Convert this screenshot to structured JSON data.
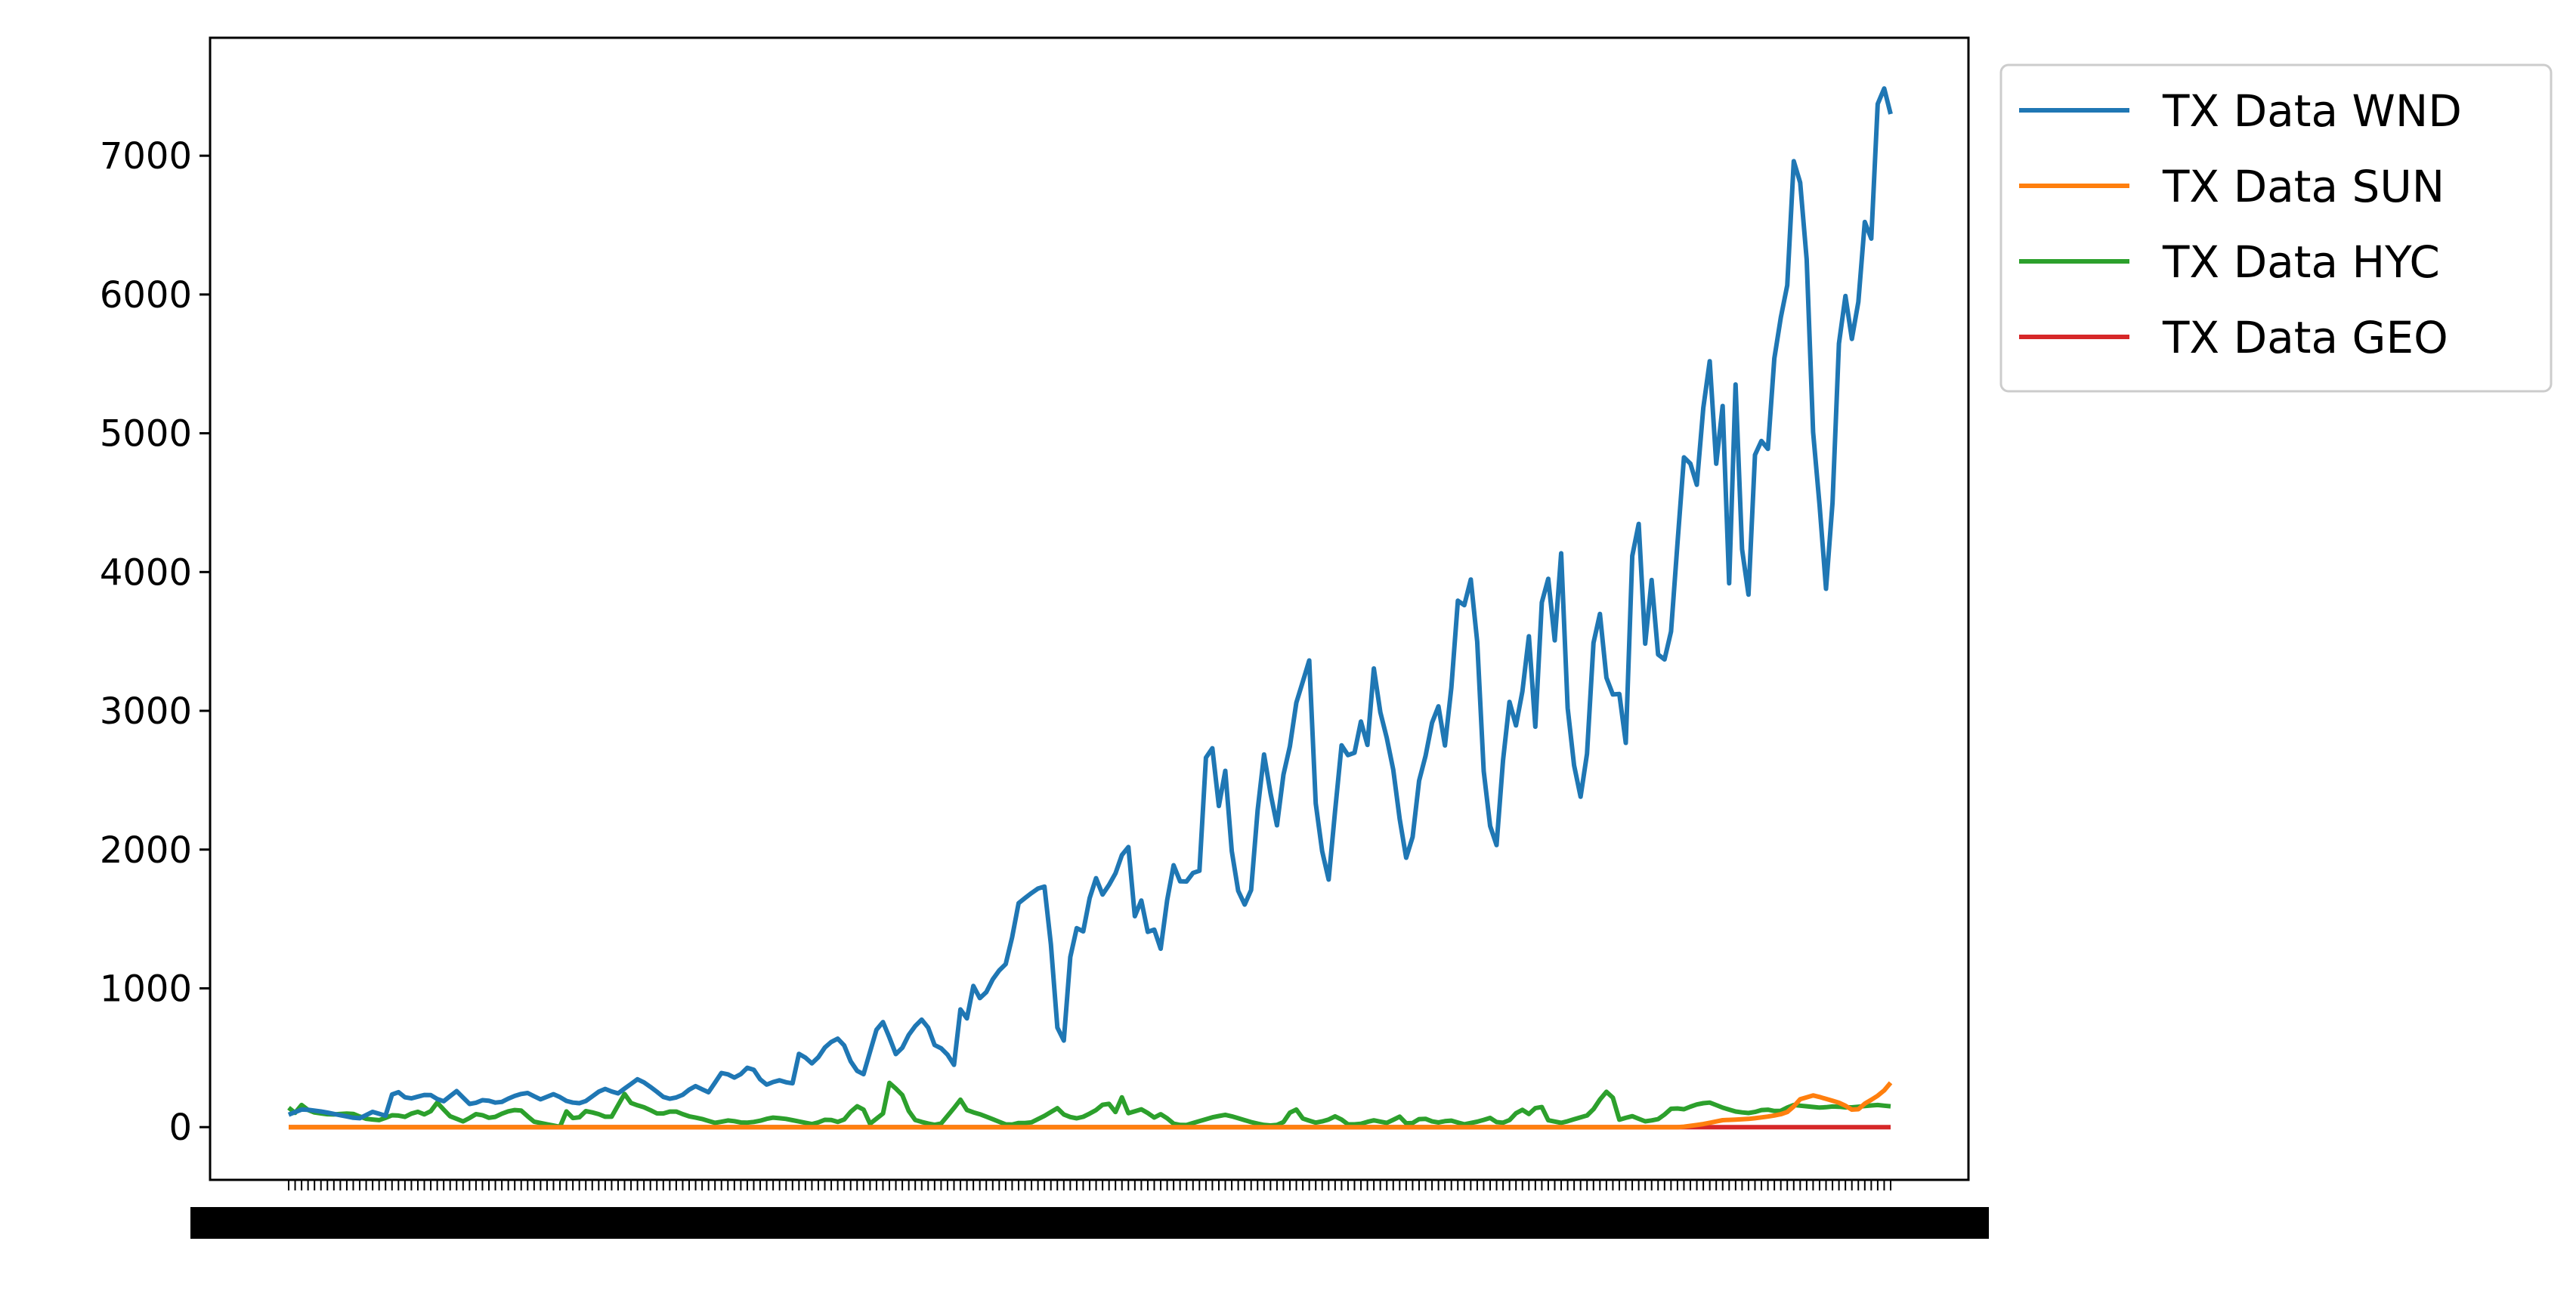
{
  "chart_data": {
    "type": "line",
    "title": "",
    "xlabel": "",
    "ylabel": "",
    "ylim": [
      -380,
      7850
    ],
    "yticks": [
      0,
      1000,
      2000,
      3000,
      4000,
      5000,
      6000,
      7000
    ],
    "ytick_labels": [
      "0",
      "1000",
      "2000",
      "3000",
      "4000",
      "5000",
      "6000",
      "7000"
    ],
    "x_count": 249,
    "x_tick_labels_note": "x tick labels are overplotted and illegible in the original",
    "grid": false,
    "legend_position": "outside top-right",
    "series": [
      {
        "name": "TX Data WND",
        "color": "#1f77b4",
        "anchors": [
          [
            0,
            90
          ],
          [
            2,
            130
          ],
          [
            5,
            110
          ],
          [
            10,
            60
          ],
          [
            12,
            110
          ],
          [
            14,
            80
          ],
          [
            15,
            280
          ],
          [
            17,
            200
          ],
          [
            20,
            240
          ],
          [
            22,
            180
          ],
          [
            24,
            260
          ],
          [
            26,
            160
          ],
          [
            28,
            200
          ],
          [
            30,
            170
          ],
          [
            32,
            220
          ],
          [
            34,
            250
          ],
          [
            36,
            200
          ],
          [
            38,
            240
          ],
          [
            40,
            180
          ],
          [
            42,
            170
          ],
          [
            45,
            280
          ],
          [
            47,
            240
          ],
          [
            50,
            350
          ],
          [
            52,
            280
          ],
          [
            54,
            200
          ],
          [
            56,
            220
          ],
          [
            58,
            300
          ],
          [
            60,
            250
          ],
          [
            62,
            400
          ],
          [
            64,
            350
          ],
          [
            66,
            450
          ],
          [
            68,
            300
          ],
          [
            70,
            340
          ],
          [
            72,
            310
          ],
          [
            73,
            540
          ],
          [
            75,
            450
          ],
          [
            77,
            600
          ],
          [
            79,
            650
          ],
          [
            80,
            500
          ],
          [
            82,
            350
          ],
          [
            84,
            700
          ],
          [
            85,
            760
          ],
          [
            87,
            500
          ],
          [
            89,
            700
          ],
          [
            91,
            800
          ],
          [
            92,
            600
          ],
          [
            94,
            550
          ],
          [
            95,
            400
          ],
          [
            96,
            850
          ],
          [
            97,
            780
          ],
          [
            98,
            1050
          ],
          [
            99,
            900
          ],
          [
            101,
            1100
          ],
          [
            103,
            1200
          ],
          [
            104,
            1600
          ],
          [
            106,
            1680
          ],
          [
            108,
            1750
          ],
          [
            109,
            1300
          ],
          [
            110,
            640
          ],
          [
            111,
            620
          ],
          [
            112,
            1450
          ],
          [
            114,
            1400
          ],
          [
            115,
            1900
          ],
          [
            116,
            1650
          ],
          [
            118,
            1800
          ],
          [
            119,
            1950
          ],
          [
            120,
            2040
          ],
          [
            121,
            1500
          ],
          [
            122,
            1650
          ],
          [
            123,
            1350
          ],
          [
            124,
            1450
          ],
          [
            125,
            1200
          ],
          [
            126,
            1950
          ],
          [
            128,
            1700
          ],
          [
            129,
            1900
          ],
          [
            130,
            1650
          ],
          [
            131,
            2650
          ],
          [
            132,
            2750
          ],
          [
            133,
            2300
          ],
          [
            134,
            2600
          ],
          [
            135,
            1850
          ],
          [
            136,
            1650
          ],
          [
            137,
            1580
          ],
          [
            138,
            1800
          ],
          [
            139,
            2750
          ],
          [
            140,
            2600
          ],
          [
            141,
            2050
          ],
          [
            142,
            2500
          ],
          [
            143,
            2700
          ],
          [
            144,
            3050
          ],
          [
            146,
            3380
          ],
          [
            147,
            2100
          ],
          [
            148,
            1950
          ],
          [
            149,
            1700
          ],
          [
            150,
            2680
          ],
          [
            151,
            2820
          ],
          [
            152,
            2500
          ],
          [
            153,
            3050
          ],
          [
            154,
            2600
          ],
          [
            155,
            3350
          ],
          [
            156,
            3000
          ],
          [
            157,
            2800
          ],
          [
            158,
            2550
          ],
          [
            159,
            2150
          ],
          [
            160,
            1870
          ],
          [
            161,
            2200
          ],
          [
            162,
            2700
          ],
          [
            163,
            2650
          ],
          [
            164,
            3250
          ],
          [
            165,
            2650
          ],
          [
            166,
            3000
          ],
          [
            167,
            3800
          ],
          [
            168,
            3750
          ],
          [
            169,
            3950
          ],
          [
            170,
            3450
          ],
          [
            171,
            2380
          ],
          [
            172,
            2100
          ],
          [
            173,
            2000
          ],
          [
            174,
            3080
          ],
          [
            175,
            3050
          ],
          [
            176,
            2700
          ],
          [
            177,
            3900
          ],
          [
            178,
            2650
          ],
          [
            179,
            3750
          ],
          [
            180,
            3980
          ],
          [
            181,
            3500
          ],
          [
            182,
            4200
          ],
          [
            183,
            2780
          ],
          [
            184,
            2550
          ],
          [
            185,
            2300
          ],
          [
            186,
            2950
          ],
          [
            187,
            3980
          ],
          [
            188,
            3350
          ],
          [
            189,
            3050
          ],
          [
            190,
            3280
          ],
          [
            191,
            2550
          ],
          [
            192,
            4100
          ],
          [
            193,
            4350
          ],
          [
            194,
            3400
          ],
          [
            195,
            4050
          ],
          [
            196,
            3200
          ],
          [
            197,
            3450
          ],
          [
            198,
            3650
          ],
          [
            199,
            4700
          ],
          [
            200,
            4980
          ],
          [
            201,
            4450
          ],
          [
            202,
            5050
          ],
          [
            203,
            5650
          ],
          [
            204,
            4750
          ],
          [
            205,
            5200
          ],
          [
            206,
            3800
          ],
          [
            207,
            5650
          ],
          [
            208,
            3700
          ],
          [
            209,
            3900
          ],
          [
            210,
            5450
          ],
          [
            211,
            4500
          ],
          [
            212,
            5350
          ],
          [
            213,
            5850
          ],
          [
            214,
            5800
          ],
          [
            215,
            6980
          ],
          [
            216,
            6850
          ],
          [
            217,
            6250
          ],
          [
            218,
            4900
          ],
          [
            219,
            4400
          ],
          [
            220,
            3720
          ],
          [
            221,
            4850
          ],
          [
            222,
            6150
          ],
          [
            223,
            5850
          ],
          [
            224,
            5480
          ],
          [
            225,
            6700
          ],
          [
            226,
            6120
          ],
          [
            227,
            7350
          ],
          [
            228,
            7500
          ],
          [
            229,
            7300
          ]
        ]
      },
      {
        "name": "TX Data SUN",
        "color": "#ff7f0e",
        "anchors": [
          [
            0,
            0
          ],
          [
            199,
            0
          ],
          [
            202,
            20
          ],
          [
            205,
            50
          ],
          [
            209,
            60
          ],
          [
            212,
            80
          ],
          [
            214,
            100
          ],
          [
            215,
            140
          ],
          [
            216,
            200
          ],
          [
            218,
            230
          ],
          [
            220,
            200
          ],
          [
            222,
            170
          ],
          [
            224,
            110
          ],
          [
            225,
            160
          ],
          [
            227,
            220
          ],
          [
            228,
            260
          ],
          [
            229,
            320
          ]
        ]
      },
      {
        "name": "TX Data HYC",
        "color": "#2ca02c",
        "anchors": [
          [
            0,
            140
          ],
          [
            1,
            100
          ],
          [
            2,
            170
          ],
          [
            3,
            110
          ],
          [
            6,
            90
          ],
          [
            9,
            100
          ],
          [
            11,
            60
          ],
          [
            13,
            50
          ],
          [
            15,
            90
          ],
          [
            17,
            70
          ],
          [
            18,
            120
          ],
          [
            20,
            80
          ],
          [
            21,
            190
          ],
          [
            23,
            80
          ],
          [
            25,
            40
          ],
          [
            27,
            100
          ],
          [
            29,
            60
          ],
          [
            31,
            110
          ],
          [
            33,
            130
          ],
          [
            35,
            40
          ],
          [
            37,
            20
          ],
          [
            39,
            0
          ],
          [
            40,
            160
          ],
          [
            41,
            10
          ],
          [
            42,
            120
          ],
          [
            44,
            100
          ],
          [
            46,
            60
          ],
          [
            48,
            240
          ],
          [
            49,
            170
          ],
          [
            51,
            140
          ],
          [
            53,
            90
          ],
          [
            55,
            120
          ],
          [
            57,
            80
          ],
          [
            59,
            60
          ],
          [
            61,
            30
          ],
          [
            63,
            50
          ],
          [
            65,
            30
          ],
          [
            67,
            40
          ],
          [
            69,
            70
          ],
          [
            71,
            60
          ],
          [
            73,
            40
          ],
          [
            75,
            20
          ],
          [
            77,
            60
          ],
          [
            79,
            30
          ],
          [
            81,
            150
          ],
          [
            82,
            150
          ],
          [
            83,
            20
          ],
          [
            85,
            100
          ],
          [
            86,
            350
          ],
          [
            87,
            260
          ],
          [
            88,
            220
          ],
          [
            89,
            60
          ],
          [
            91,
            30
          ],
          [
            93,
            10
          ],
          [
            95,
            130
          ],
          [
            96,
            200
          ],
          [
            97,
            120
          ],
          [
            99,
            90
          ],
          [
            101,
            50
          ],
          [
            103,
            10
          ],
          [
            104,
            30
          ],
          [
            106,
            30
          ],
          [
            108,
            80
          ],
          [
            110,
            140
          ],
          [
            111,
            80
          ],
          [
            113,
            60
          ],
          [
            115,
            110
          ],
          [
            116,
            140
          ],
          [
            117,
            200
          ],
          [
            118,
            80
          ],
          [
            119,
            230
          ],
          [
            120,
            100
          ],
          [
            122,
            130
          ],
          [
            124,
            60
          ],
          [
            125,
            110
          ],
          [
            126,
            30
          ],
          [
            128,
            10
          ],
          [
            130,
            40
          ],
          [
            132,
            70
          ],
          [
            134,
            90
          ],
          [
            136,
            60
          ],
          [
            138,
            30
          ],
          [
            140,
            10
          ],
          [
            142,
            20
          ],
          [
            143,
            100
          ],
          [
            144,
            130
          ],
          [
            145,
            60
          ],
          [
            147,
            30
          ],
          [
            149,
            60
          ],
          [
            150,
            90
          ],
          [
            151,
            20
          ],
          [
            153,
            20
          ],
          [
            155,
            50
          ],
          [
            157,
            30
          ],
          [
            159,
            80
          ],
          [
            160,
            10
          ],
          [
            162,
            70
          ],
          [
            164,
            30
          ],
          [
            166,
            50
          ],
          [
            168,
            20
          ],
          [
            170,
            40
          ],
          [
            172,
            70
          ],
          [
            173,
            20
          ],
          [
            175,
            60
          ],
          [
            176,
            150
          ],
          [
            177,
            80
          ],
          [
            178,
            130
          ],
          [
            179,
            160
          ],
          [
            180,
            50
          ],
          [
            182,
            30
          ],
          [
            184,
            60
          ],
          [
            186,
            90
          ],
          [
            188,
            240
          ],
          [
            189,
            280
          ],
          [
            190,
            50
          ],
          [
            192,
            80
          ],
          [
            194,
            40
          ],
          [
            196,
            60
          ],
          [
            198,
            150
          ],
          [
            199,
            120
          ],
          [
            201,
            160
          ],
          [
            203,
            180
          ],
          [
            205,
            140
          ],
          [
            207,
            110
          ],
          [
            209,
            100
          ],
          [
            211,
            130
          ],
          [
            213,
            110
          ],
          [
            215,
            160
          ],
          [
            217,
            150
          ],
          [
            219,
            140
          ],
          [
            221,
            150
          ],
          [
            223,
            140
          ],
          [
            225,
            150
          ],
          [
            227,
            160
          ],
          [
            229,
            150
          ]
        ]
      },
      {
        "name": "TX Data GEO",
        "color": "#d62728",
        "anchors": [
          [
            0,
            0
          ],
          [
            229,
            0
          ]
        ]
      }
    ]
  }
}
